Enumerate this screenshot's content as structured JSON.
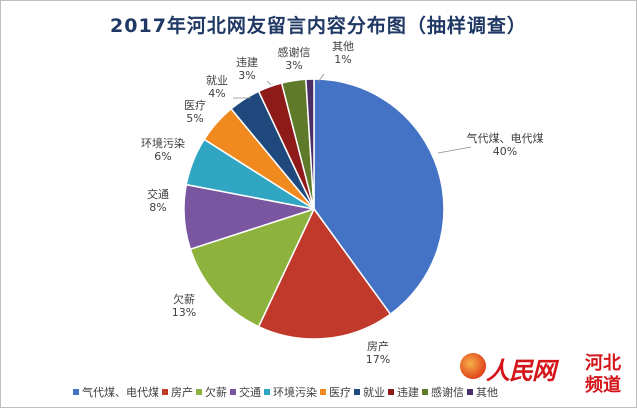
{
  "chart_data": {
    "type": "pie",
    "title": "2017年河北网友留言内容分布图（抽样调查）",
    "slices": [
      {
        "name": "气代煤、电代煤",
        "value": 40,
        "label": "40%",
        "color": "#4472c4"
      },
      {
        "name": "房产",
        "value": 17,
        "label": "17%",
        "color": "#c0392b"
      },
      {
        "name": "欠薪",
        "value": 13,
        "label": "13%",
        "color": "#8db33e"
      },
      {
        "name": "交通",
        "value": 8,
        "label": "8%",
        "color": "#7a55a0"
      },
      {
        "name": "环境污染",
        "value": 6,
        "label": "6%",
        "color": "#31a6c3"
      },
      {
        "name": "医疗",
        "value": 5,
        "label": "5%",
        "color": "#f08a1e"
      },
      {
        "name": "就业",
        "value": 4,
        "label": "4%",
        "color": "#1f497d"
      },
      {
        "name": "违建",
        "value": 3,
        "label": "3%",
        "color": "#8e1a1a"
      },
      {
        "name": "感谢信",
        "value": 3,
        "label": "3%",
        "color": "#5f7a2a"
      },
      {
        "name": "其他",
        "value": 1,
        "label": "1%",
        "color": "#4b2e66"
      }
    ],
    "legend_position": "bottom"
  },
  "watermark": {
    "brand": "人民网",
    "sub": "河北频道"
  }
}
